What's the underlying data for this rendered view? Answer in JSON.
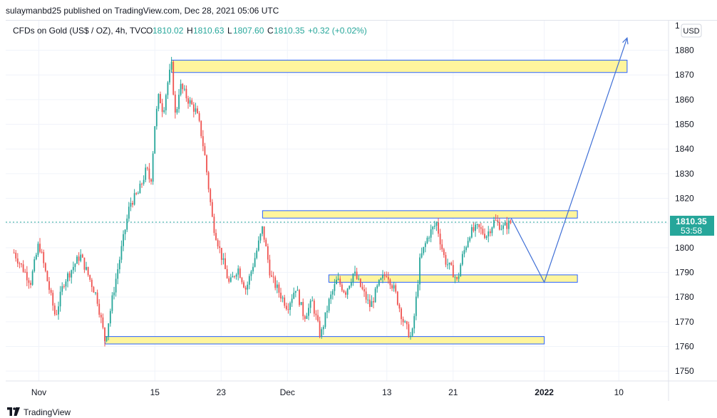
{
  "header": {
    "text": "sulaymanbd25 published on TradingView.com, Dec 28, 2021 05:06 UTC"
  },
  "legend": {
    "symbol": "CFDs on Gold (US$ / OZ), 4h, TVC",
    "o_label": "O",
    "o_value": "1810.02",
    "h_label": "H",
    "h_value": "1810.63",
    "l_label": "L",
    "l_value": "1807.60",
    "c_label": "C",
    "c_value": "1810.35",
    "change": "+0.32 (+0.02%)"
  },
  "currency_badge": "USD",
  "price_label": {
    "price": "1810.35",
    "countdown": "53:58"
  },
  "footer": {
    "brand": "TradingView"
  },
  "colors": {
    "up": "#26a69a",
    "down": "#ef5350",
    "zone_fill": "#fff59d",
    "zone_stroke": "#2962ff",
    "projection": "#3f6fd6",
    "price_tag": "#26a69a"
  },
  "chart_data": {
    "type": "candlestick",
    "x_ticks": [
      "Nov",
      "15",
      "23",
      "Dec",
      "13",
      "21",
      "2022",
      "10"
    ],
    "y_ticks": [
      1750,
      1760,
      1770,
      1780,
      1790,
      1800,
      1810,
      1820,
      1830,
      1840,
      1850,
      1860,
      1870,
      1880
    ],
    "ylim": [
      1746,
      1892
    ],
    "last_price": 1810.35,
    "price_path": [
      {
        "x": "Oct 28",
        "y": 1798
      },
      {
        "x": "Oct 30",
        "y": 1786
      },
      {
        "x": "Nov 1",
        "y": 1802
      },
      {
        "x": "Nov 3",
        "y": 1772
      },
      {
        "x": "Nov 4",
        "y": 1786
      },
      {
        "x": "Nov 6",
        "y": 1797
      },
      {
        "x": "Nov 8",
        "y": 1780
      },
      {
        "x": "Nov 9",
        "y": 1762
      },
      {
        "x": "Nov 10",
        "y": 1782
      },
      {
        "x": "Nov 11",
        "y": 1800
      },
      {
        "x": "Nov 12",
        "y": 1818
      },
      {
        "x": "Nov 13",
        "y": 1822
      },
      {
        "x": "Nov 14",
        "y": 1832
      },
      {
        "x": "Nov 14b",
        "y": 1826
      },
      {
        "x": "Nov 15",
        "y": 1850
      },
      {
        "x": "Nov 15b",
        "y": 1862
      },
      {
        "x": "Nov 16",
        "y": 1855
      },
      {
        "x": "Nov 16b",
        "y": 1866
      },
      {
        "x": "Nov 17",
        "y": 1874
      },
      {
        "x": "Nov 17b",
        "y": 1852
      },
      {
        "x": "Nov 18",
        "y": 1866
      },
      {
        "x": "Nov 19",
        "y": 1860
      },
      {
        "x": "Nov 20",
        "y": 1855
      },
      {
        "x": "Nov 20b",
        "y": 1848
      },
      {
        "x": "Nov 21",
        "y": 1838
      },
      {
        "x": "Nov 22",
        "y": 1810
      },
      {
        "x": "Nov 23",
        "y": 1797
      },
      {
        "x": "Nov 24",
        "y": 1785
      },
      {
        "x": "Nov 25",
        "y": 1792
      },
      {
        "x": "Nov 26",
        "y": 1783
      },
      {
        "x": "Nov 27",
        "y": 1795
      },
      {
        "x": "Nov 28",
        "y": 1808
      },
      {
        "x": "Nov 29",
        "y": 1788
      },
      {
        "x": "Nov 30",
        "y": 1782
      },
      {
        "x": "Dec 1",
        "y": 1776
      },
      {
        "x": "Dec 2",
        "y": 1784
      },
      {
        "x": "Dec 3",
        "y": 1772
      },
      {
        "x": "Dec 4",
        "y": 1778
      },
      {
        "x": "Dec 5",
        "y": 1764
      },
      {
        "x": "Dec 6",
        "y": 1778
      },
      {
        "x": "Dec 7",
        "y": 1787
      },
      {
        "x": "Dec 8",
        "y": 1782
      },
      {
        "x": "Dec 9",
        "y": 1790
      },
      {
        "x": "Dec 10",
        "y": 1783
      },
      {
        "x": "Dec 11",
        "y": 1776
      },
      {
        "x": "Dec 12",
        "y": 1785
      },
      {
        "x": "Dec 13",
        "y": 1790
      },
      {
        "x": "Dec 14",
        "y": 1782
      },
      {
        "x": "Dec 15",
        "y": 1770
      },
      {
        "x": "Dec 16",
        "y": 1763
      },
      {
        "x": "Dec 16b",
        "y": 1778
      },
      {
        "x": "Dec 17",
        "y": 1795
      },
      {
        "x": "Dec 18",
        "y": 1805
      },
      {
        "x": "Dec 19",
        "y": 1810
      },
      {
        "x": "Dec 19b",
        "y": 1802
      },
      {
        "x": "Dec 20",
        "y": 1795
      },
      {
        "x": "Dec 21",
        "y": 1790
      },
      {
        "x": "Dec 21b",
        "y": 1786
      },
      {
        "x": "Dec 22",
        "y": 1795
      },
      {
        "x": "Dec 23",
        "y": 1806
      },
      {
        "x": "Dec 24",
        "y": 1808
      },
      {
        "x": "Dec 25",
        "y": 1805
      },
      {
        "x": "Dec 26",
        "y": 1811
      },
      {
        "x": "Dec 27",
        "y": 1808
      },
      {
        "x": "Dec 28",
        "y": 1810.35
      }
    ],
    "zones": [
      {
        "x_start": "Nov 17",
        "x_end": "Jan 11",
        "y_low": 1871,
        "y_high": 1876
      },
      {
        "x_start": "Nov 28",
        "x_end": "Jan 5",
        "y_low": 1812,
        "y_high": 1815
      },
      {
        "x_start": "Dec 6",
        "x_end": "Jan 5",
        "y_low": 1786,
        "y_high": 1789
      },
      {
        "x_start": "Nov 9",
        "x_end": "Jan 1",
        "y_low": 1761,
        "y_high": 1764
      }
    ],
    "projection": [
      {
        "x": "Dec 28",
        "y": 1812
      },
      {
        "x": "Jan 1",
        "y": 1786
      },
      {
        "x": "Jan 11",
        "y": 1885
      }
    ]
  }
}
